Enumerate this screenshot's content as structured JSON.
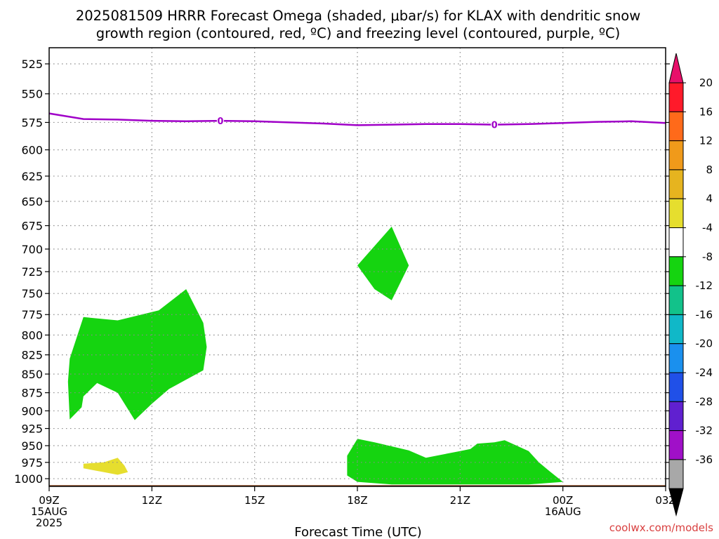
{
  "chart_data": {
    "type": "heatmap",
    "title_lines": [
      "2025081509 HRRR Forecast Omega (shaded, μbar/s) for KLAX with dendritic snow",
      "growth region (contoured, red, ºC) and freezing level (contoured, purple, ºC)"
    ],
    "xlabel": "Forecast Time (UTC)",
    "ylabel": "",
    "credit": "coolwx.com/models",
    "x_range_hours": [
      0,
      18
    ],
    "y_axis": {
      "scale": "log-pressure",
      "min": 512,
      "max": 1012,
      "inverted": true
    },
    "y_ticks": [
      525,
      550,
      575,
      600,
      625,
      650,
      675,
      700,
      725,
      750,
      775,
      800,
      825,
      850,
      875,
      900,
      925,
      950,
      975,
      1000
    ],
    "x_ticks": [
      {
        "hour": 0,
        "lines": [
          "09Z",
          "15AUG",
          "2025"
        ]
      },
      {
        "hour": 3,
        "lines": [
          "12Z"
        ]
      },
      {
        "hour": 6,
        "lines": [
          "15Z"
        ]
      },
      {
        "hour": 9,
        "lines": [
          "18Z"
        ]
      },
      {
        "hour": 12,
        "lines": [
          "21Z"
        ]
      },
      {
        "hour": 15,
        "lines": [
          "00Z",
          "16AUG"
        ]
      },
      {
        "hour": 18,
        "lines": [
          "03Z"
        ]
      }
    ],
    "grid": true,
    "colorbar": {
      "placement": "right",
      "labels": [
        "20",
        "16",
        "12",
        "8",
        "4",
        "-4",
        "-8",
        "-12",
        "-16",
        "-20",
        "-24",
        "-28",
        "-32",
        "-36"
      ],
      "colors": [
        "#ff1a2a",
        "#ff6a1a",
        "#f09a1a",
        "#e6b41f",
        "#e6de2e",
        "#ffffff",
        "#15d410",
        "#12c28a",
        "#10b8c8",
        "#1a90ee",
        "#2050e8",
        "#6020d0",
        "#a010c8",
        "#a8a8a8"
      ],
      "over_color": "#e8106a",
      "under_color": "#000000"
    },
    "freezing_level": {
      "color": "#a000c8",
      "label": "0",
      "label_hours": [
        5.0,
        13.0
      ],
      "points": [
        [
          0,
          567
        ],
        [
          1,
          572
        ],
        [
          2,
          572.5
        ],
        [
          3,
          573.5
        ],
        [
          4,
          574
        ],
        [
          5,
          573.5
        ],
        [
          6,
          574
        ],
        [
          7,
          575
        ],
        [
          8,
          576
        ],
        [
          9,
          577.5
        ],
        [
          10,
          577
        ],
        [
          11,
          576.5
        ],
        [
          12,
          576.5
        ],
        [
          13,
          577
        ],
        [
          14,
          576.5
        ],
        [
          15,
          575.5
        ],
        [
          16,
          574.5
        ],
        [
          17,
          574
        ],
        [
          18,
          575.5
        ]
      ]
    },
    "shaded_regions": [
      {
        "value_bin": "-8 to -4",
        "color": "#15d410",
        "points": [
          [
            1.0,
            778
          ],
          [
            2.0,
            782
          ],
          [
            3.2,
            770
          ],
          [
            4.0,
            745
          ],
          [
            4.5,
            785
          ],
          [
            4.6,
            815
          ],
          [
            4.5,
            845
          ],
          [
            3.5,
            870
          ],
          [
            3.0,
            890
          ],
          [
            2.5,
            913
          ],
          [
            2.0,
            875
          ],
          [
            1.4,
            862
          ],
          [
            1.0,
            880
          ],
          [
            0.95,
            895
          ],
          [
            0.6,
            912
          ],
          [
            0.55,
            860
          ],
          [
            0.6,
            830
          ]
        ]
      },
      {
        "value_bin": "-8 to -4",
        "color": "#15d410",
        "points": [
          [
            10.0,
            676
          ],
          [
            10.5,
            718
          ],
          [
            10.2,
            742
          ],
          [
            10.0,
            758
          ],
          [
            9.5,
            745
          ],
          [
            9.0,
            718
          ]
        ]
      },
      {
        "value_bin": "-8 to -4",
        "color": "#15d410",
        "points": [
          [
            9.0,
            940
          ],
          [
            9.5,
            945
          ],
          [
            10.5,
            957
          ],
          [
            11.0,
            968
          ],
          [
            12.0,
            958
          ],
          [
            12.3,
            955
          ],
          [
            12.5,
            947
          ],
          [
            13.0,
            945
          ],
          [
            13.3,
            942
          ],
          [
            14.0,
            958
          ],
          [
            14.3,
            975
          ],
          [
            14.6,
            988
          ],
          [
            15.0,
            1005
          ],
          [
            14.0,
            1009
          ],
          [
            12.0,
            1009
          ],
          [
            10.0,
            1009
          ],
          [
            9.0,
            1005
          ],
          [
            8.7,
            995
          ],
          [
            8.7,
            965
          ]
        ]
      },
      {
        "value_bin": "4 to 8",
        "color": "#e6de2e",
        "points": [
          [
            1.0,
            977
          ],
          [
            1.6,
            975
          ],
          [
            2.0,
            968
          ],
          [
            2.2,
            980
          ],
          [
            2.3,
            990
          ],
          [
            2.0,
            994
          ],
          [
            1.6,
            990
          ],
          [
            1.0,
            984
          ]
        ]
      }
    ],
    "ground": {
      "color": "#9c5a32",
      "pressure": 1010
    }
  }
}
